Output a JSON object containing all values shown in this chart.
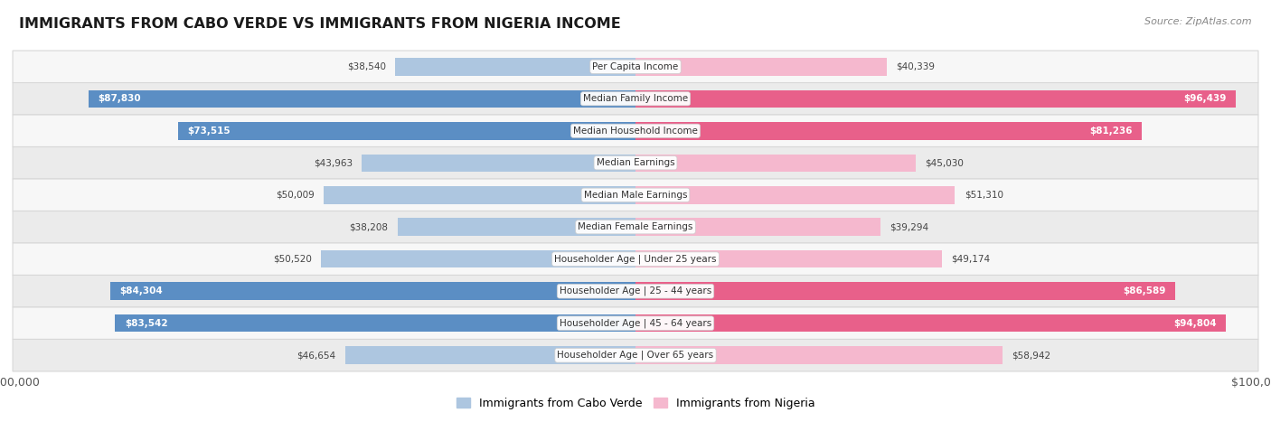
{
  "title": "IMMIGRANTS FROM CABO VERDE VS IMMIGRANTS FROM NIGERIA INCOME",
  "source": "Source: ZipAtlas.com",
  "categories": [
    "Per Capita Income",
    "Median Family Income",
    "Median Household Income",
    "Median Earnings",
    "Median Male Earnings",
    "Median Female Earnings",
    "Householder Age | Under 25 years",
    "Householder Age | 25 - 44 years",
    "Householder Age | 45 - 64 years",
    "Householder Age | Over 65 years"
  ],
  "cabo_verde": [
    38540,
    87830,
    73515,
    43963,
    50009,
    38208,
    50520,
    84304,
    83542,
    46654
  ],
  "nigeria": [
    40339,
    96439,
    81236,
    45030,
    51310,
    39294,
    49174,
    86589,
    94804,
    58942
  ],
  "max_value": 100000,
  "cabo_verde_color_light": "#adc6e0",
  "cabo_verde_color_dark": "#5b8ec4",
  "nigeria_color_light": "#f5b8ce",
  "nigeria_color_dark": "#e8608a",
  "label_threshold": 70000,
  "background_color": "#ffffff",
  "row_bg_even": "#f7f7f7",
  "row_bg_odd": "#ebebeb",
  "row_border_color": "#d8d8d8",
  "legend_cabo": "Immigrants from Cabo Verde",
  "legend_nigeria": "Immigrants from Nigeria"
}
